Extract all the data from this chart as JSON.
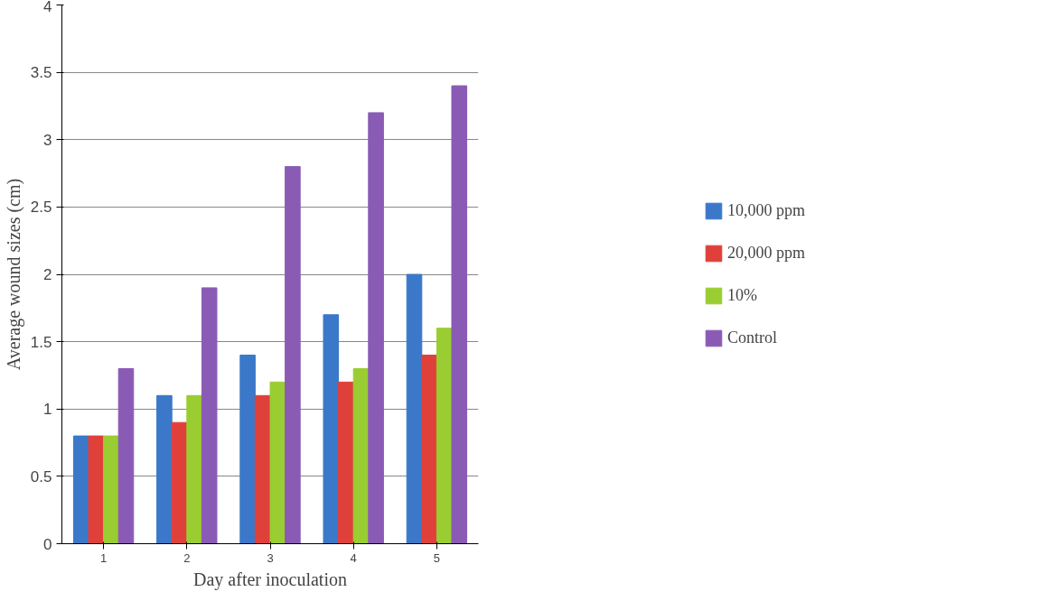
{
  "chart_data": {
    "type": "bar",
    "xlabel": "Day after inoculation",
    "ylabel": "Average wound sizes (cm)",
    "categories": [
      "1",
      "2",
      "3",
      "4",
      "5"
    ],
    "series": [
      {
        "name": "10,000 ppm",
        "color": "#3b78c9",
        "values": [
          0.8,
          1.1,
          1.4,
          1.7,
          2.0
        ]
      },
      {
        "name": "20,000 ppm",
        "color": "#e0403a",
        "values": [
          0.8,
          0.9,
          1.1,
          1.2,
          1.4
        ]
      },
      {
        "name": "10%",
        "color": "#9acd32",
        "values": [
          0.8,
          1.1,
          1.2,
          1.3,
          1.6
        ]
      },
      {
        "name": "Control",
        "color": "#8a5bb5",
        "values": [
          1.3,
          1.9,
          2.8,
          3.2,
          3.4
        ]
      }
    ],
    "ylim": [
      0,
      4
    ],
    "yticks": [
      0,
      0.5,
      1,
      1.5,
      2,
      2.5,
      3,
      3.5,
      4
    ],
    "grid": "y",
    "legend": "right"
  }
}
